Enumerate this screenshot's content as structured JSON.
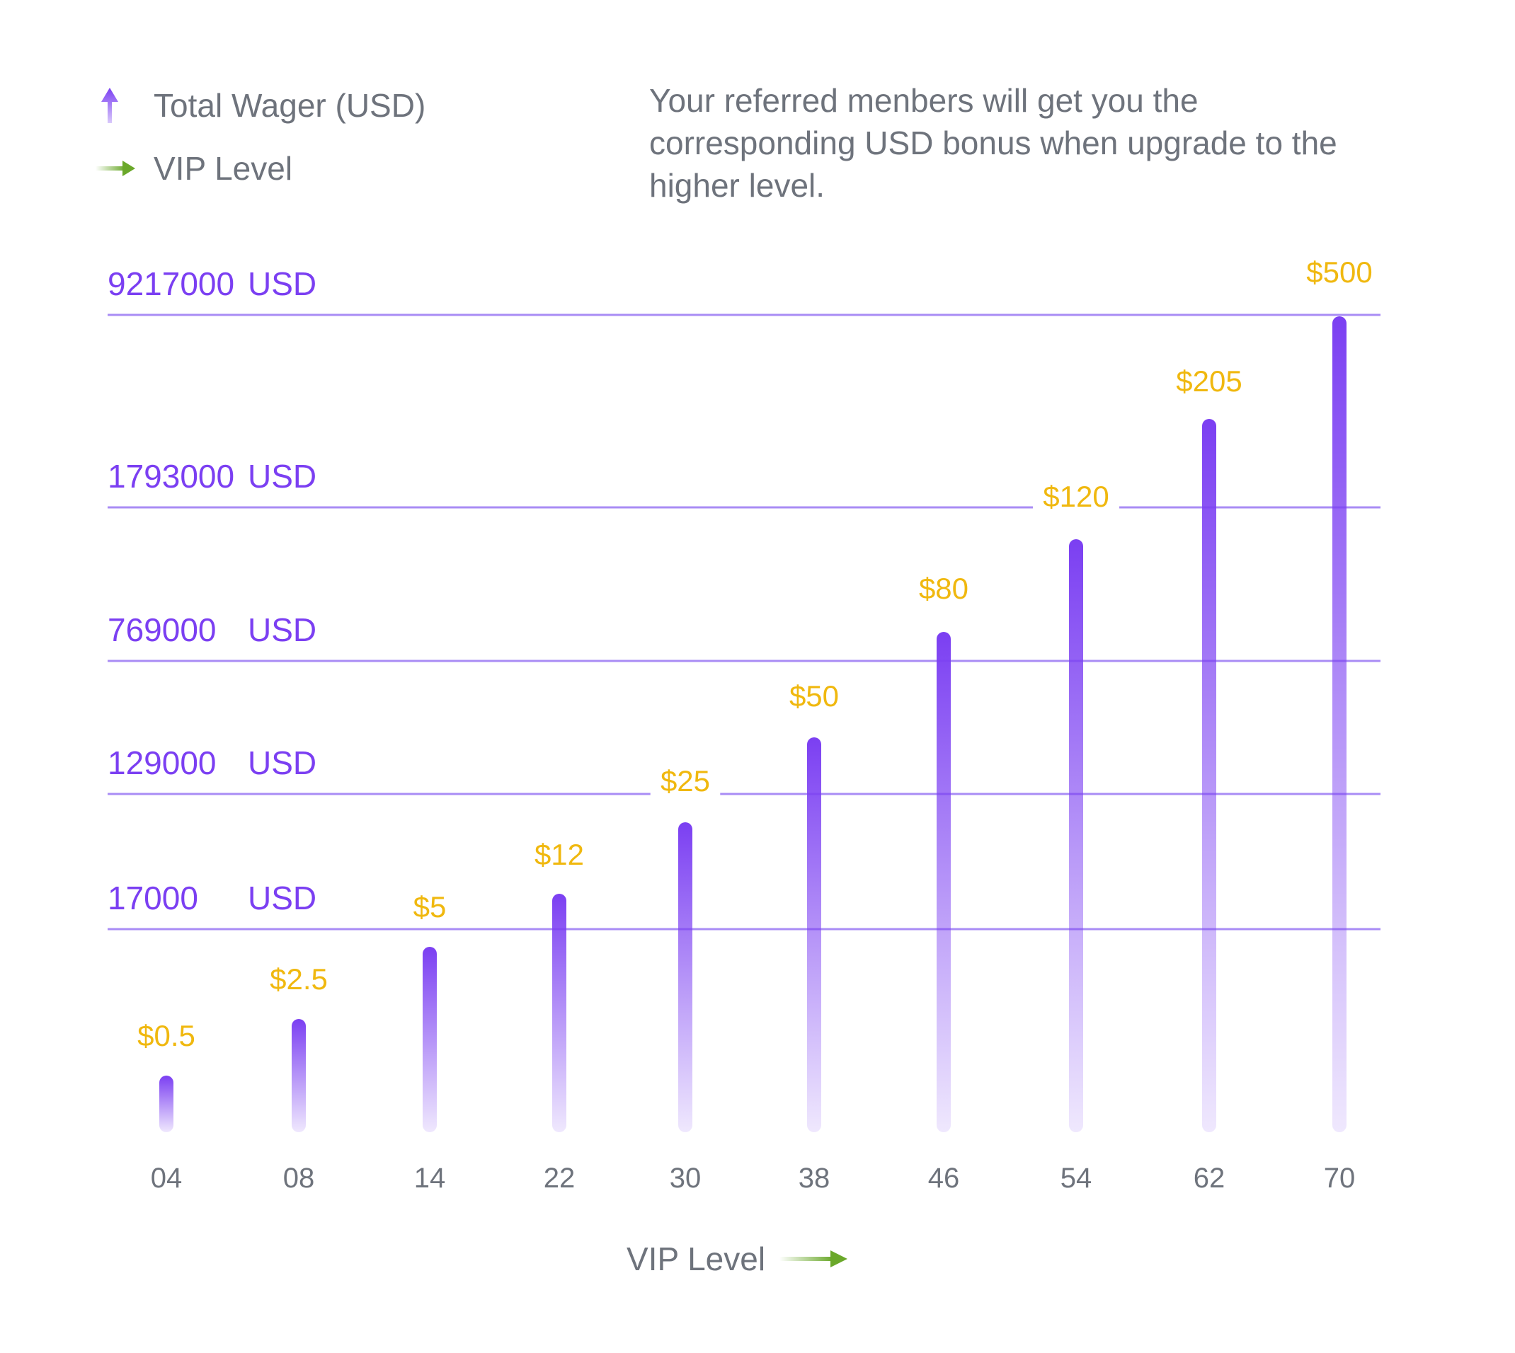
{
  "legend": {
    "items": [
      {
        "label": "Total  Wager (USD)",
        "icon": "arrow-up-icon",
        "color": "#7b3ff2"
      },
      {
        "label": "VIP Level",
        "icon": "arrow-right-icon",
        "color": "#6aa82a"
      }
    ]
  },
  "note": "Your referred menbers will get you the corresponding USD bonus when upgrade to the higher level.",
  "colors": {
    "bar": "#7b3ff2",
    "gridline": "#a98cf5",
    "wager_label": "#7b3ff2",
    "bonus_label": "#f0b80f",
    "tick_label": "#6e737c",
    "arrow_green": "#6aa82a"
  },
  "chart_data": {
    "type": "bar",
    "xlabel": "VIP Level",
    "categories": [
      "04",
      "08",
      "14",
      "22",
      "30",
      "38",
      "46",
      "54",
      "62",
      "70"
    ],
    "series": [
      {
        "values": [
          0.5,
          2.5,
          5,
          12,
          25,
          50,
          80,
          120,
          205,
          500
        ]
      }
    ],
    "data_labels": [
      "$0.5",
      "$2.5",
      "$5",
      "$12",
      "$25",
      "$50",
      "$80",
      "$120",
      "$205",
      "$500"
    ],
    "reference_lines": [
      {
        "value": 17000,
        "number": "17000",
        "unit": "USD"
      },
      {
        "value": 129000,
        "number": "129000",
        "unit": "USD"
      },
      {
        "value": 769000,
        "number": "769000",
        "unit": "USD"
      },
      {
        "value": 1793000,
        "number": "1793000",
        "unit": "USD"
      },
      {
        "value": 9217000,
        "number": "9217000",
        "unit": "USD"
      }
    ],
    "grid": false,
    "legend_position": "top-left"
  }
}
